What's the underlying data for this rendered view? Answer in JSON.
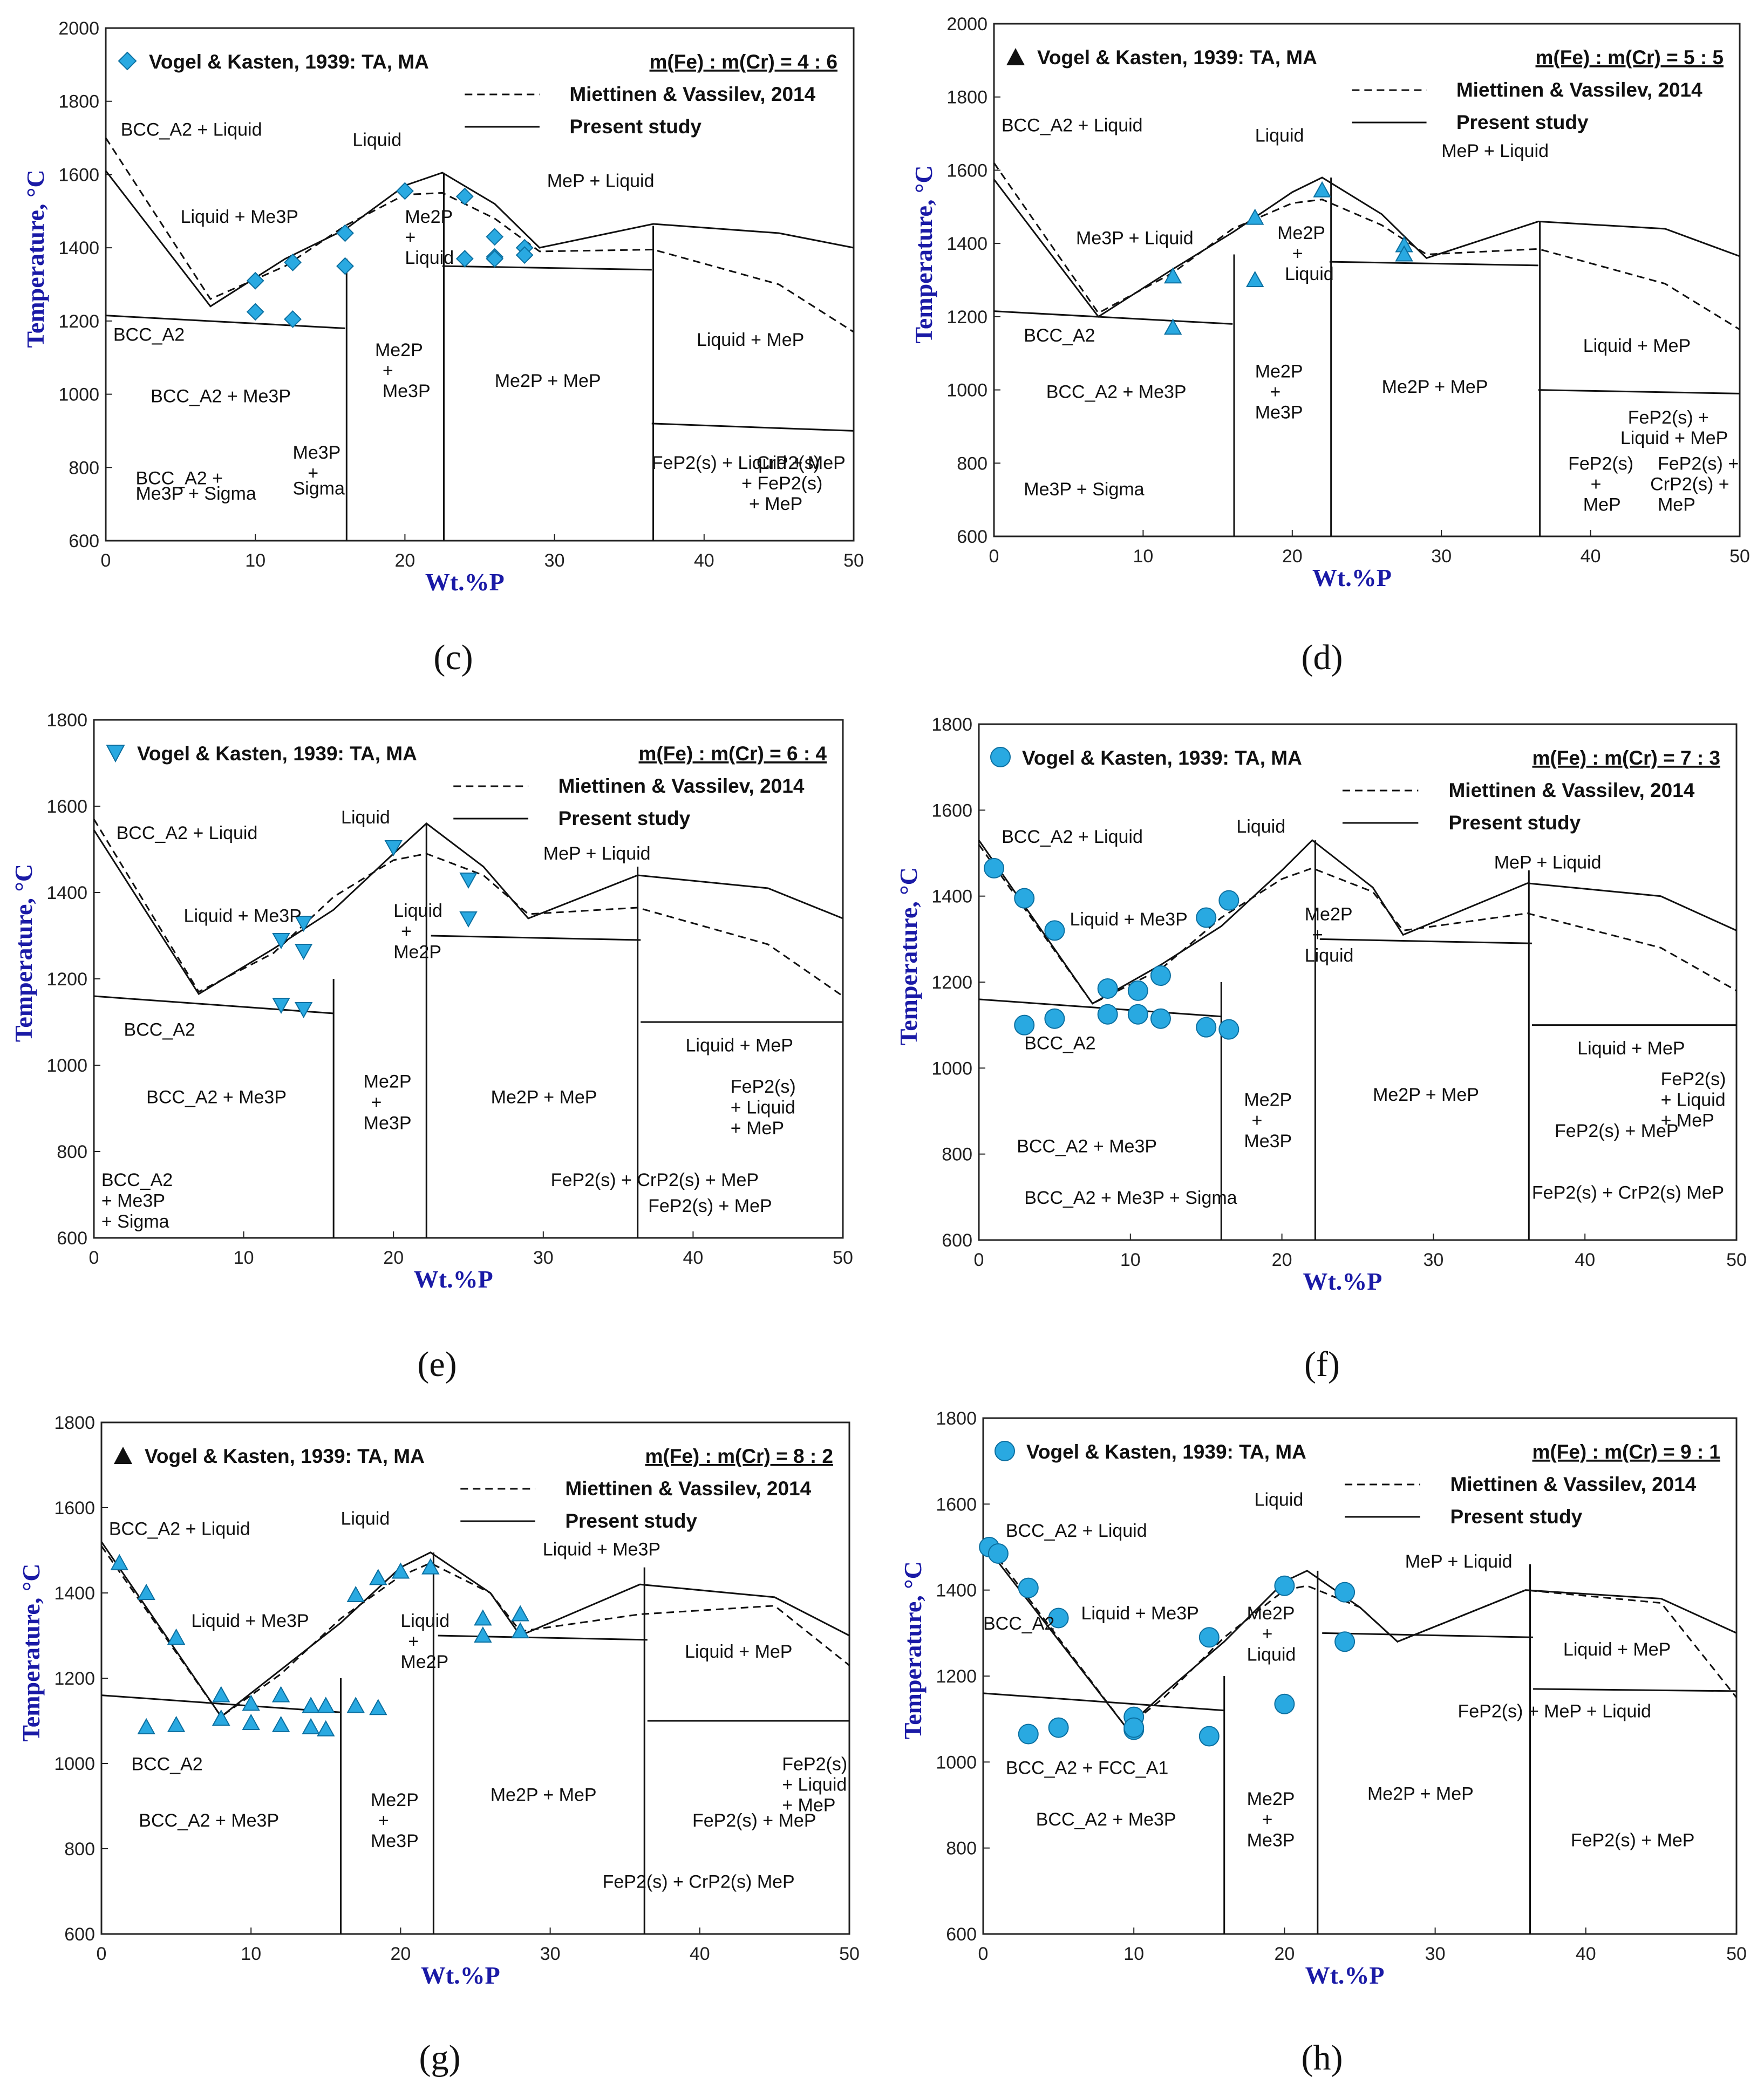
{
  "panels": [
    {
      "caption": "(c)",
      "ymax": 2000,
      "ratio": "m(Fe) : m(Cr) = 4 : 6",
      "exp_label": "Vogel & Kasten, 1939: TA, MA",
      "marker": "diamond",
      "dashed_label": "Miettinen & Vassilev, 2014",
      "solid_label": "Present study",
      "regions": [
        "Liquid",
        "BCC_A2 + Liquid",
        "Liquid + Me3P",
        "Me2P",
        "+",
        "Liquid",
        "MeP + Liquid",
        "BCC_A2",
        "BCC_A2 + Me3P",
        "Me2P",
        "+",
        "Me3P",
        "Me2P + MeP",
        "Liquid + MeP",
        "FeP2(s) + Liquid + MeP",
        "BCC_A2 +",
        "Me3P + Sigma",
        "Me3P",
        "+",
        "Sigma",
        "CrP2(s)",
        "+ FeP2(s)",
        "+ MeP"
      ]
    },
    {
      "caption": "(d)",
      "ymax": 2000,
      "ratio": "m(Fe) : m(Cr) = 5 : 5",
      "exp_label": "Vogel & Kasten, 1939: TA, MA",
      "marker": "triangle-black",
      "dashed_label": "Miettinen & Vassilev, 2014",
      "solid_label": "Present study",
      "regions": [
        "Liquid",
        "BCC_A2 + Liquid",
        "Me3P + Liquid",
        "Me2P",
        "+",
        "Liquid",
        "MeP + Liquid",
        "BCC_A2",
        "BCC_A2 + Me3P",
        "Me2P",
        "+",
        "Me3P",
        "Me2P + MeP",
        "Liquid + MeP",
        "FeP2(s) +",
        "Liquid + MeP",
        "FeP2(s)",
        "+",
        "MeP",
        "FeP2(s) +",
        "CrP2(s) +",
        "MeP",
        "Me3P + Sigma"
      ]
    },
    {
      "caption": "(e)",
      "ymax": 1800,
      "ratio": "m(Fe) : m(Cr) = 6 : 4",
      "exp_label": "Vogel & Kasten, 1939: TA, MA",
      "marker": "triangle-down",
      "dashed_label": "Miettinen & Vassilev, 2014",
      "solid_label": "Present study",
      "regions": [
        "Liquid",
        "BCC_A2 + Liquid",
        "Liquid + Me3P",
        "Liquid",
        "+",
        "Me2P",
        "MeP + Liquid",
        "BCC_A2",
        "BCC_A2 + Me3P",
        "Me2P",
        "+",
        "Me3P",
        "Me2P + MeP",
        "Liquid + MeP",
        "FeP2(s)",
        "+ Liquid",
        "+ MeP",
        "FeP2(s) + CrP2(s) + MeP",
        "FeP2(s) + MeP",
        "BCC_A2",
        "+ Me3P",
        "+ Sigma"
      ]
    },
    {
      "caption": "(f)",
      "ymax": 1800,
      "ratio": "m(Fe) : m(Cr) = 7 : 3",
      "exp_label": "Vogel & Kasten, 1939: TA, MA",
      "marker": "circle",
      "dashed_label": "Miettinen & Vassilev, 2014",
      "solid_label": "Present study",
      "regions": [
        "Liquid",
        "BCC_A2 + Liquid",
        "Liquid + Me3P",
        "Me2P",
        "+",
        "Liquid",
        "MeP + Liquid",
        "BCC_A2",
        "BCC_A2 + Me3P",
        "Me2P",
        "+",
        "Me3P",
        "Me2P + MeP",
        "Liquid + MeP",
        "FeP2(s)",
        "+ Liquid",
        "+ MeP",
        "FeP2(s) + MeP",
        "BCC_A2 + Me3P + Sigma",
        "FeP2(s) + CrP2(s) MeP"
      ]
    },
    {
      "caption": "(g)",
      "ymax": 1800,
      "ratio": "m(Fe) : m(Cr) = 8 : 2",
      "exp_label": "Vogel & Kasten, 1939: TA, MA",
      "marker": "triangle-black",
      "dashed_label": "Miettinen & Vassilev, 2014",
      "solid_label": "Present study",
      "regions": [
        "Liquid",
        "BCC_A2 + Liquid",
        "Liquid + Me3P",
        "Liquid",
        "+",
        "Me2P",
        "Liquid + Me3P",
        "BCC_A2",
        "BCC_A2 + Me3P",
        "Me2P",
        "+",
        "Me3P",
        "Me2P + MeP",
        "Liquid + MeP",
        "FeP2(s)",
        "+ Liquid",
        "+ MeP",
        "FeP2(s) + MeP",
        "FeP2(s) + CrP2(s) MeP"
      ]
    },
    {
      "caption": "(h)",
      "ymax": 1800,
      "ratio": "m(Fe) : m(Cr) = 9 : 1",
      "exp_label": "Vogel & Kasten, 1939: TA, MA",
      "marker": "circle",
      "dashed_label": "Miettinen & Vassilev, 2014",
      "solid_label": "Present study",
      "regions": [
        "Liquid",
        "BCC_A2 + Liquid",
        "BCC_A2",
        "Liquid + Me3P",
        "Me2P",
        "+",
        "Liquid",
        "MeP + Liquid",
        "BCC_A2 + FCC_A1",
        "BCC_A2 + Me3P",
        "Me2P",
        "+",
        "Me3P",
        "Me2P + MeP",
        "Liquid + MeP",
        "FeP2(s) + MeP + Liquid",
        "FeP2(s) + MeP"
      ]
    }
  ],
  "axis": {
    "xlabel": "Wt.%P",
    "ylabel": "Temperature, °C"
  },
  "chart_data": [
    {
      "type": "line",
      "title": "m(Fe) : m(Cr) = 4 : 6",
      "xlabel": "Wt.%P",
      "ylabel": "Temperature, °C",
      "xlim": [
        0,
        50
      ],
      "ylim": [
        600,
        2000
      ],
      "xticks": [
        0,
        10,
        20,
        30,
        40,
        50
      ],
      "yticks": [
        600,
        800,
        1000,
        1200,
        1400,
        1600,
        1800,
        2000
      ],
      "series": [
        {
          "name": "Vogel & Kasten, 1939: TA, MA",
          "marker": "diamond",
          "x": [
            10,
            10,
            12.5,
            12.5,
            16,
            16,
            20,
            24,
            26,
            26,
            24,
            26,
            28,
            28
          ],
          "y": [
            1310,
            1225,
            1360,
            1205,
            1440,
            1350,
            1555,
            1540,
            1430,
            1375,
            1370,
            1370,
            1400,
            1380
          ]
        },
        {
          "name": "Present study liquidus",
          "style": "solid",
          "x": [
            0,
            7,
            12,
            16,
            20,
            22.5,
            26,
            29,
            36.6,
            45,
            50
          ],
          "y": [
            1610,
            1240,
            1370,
            1450,
            1570,
            1605,
            1520,
            1400,
            1465,
            1440,
            1400
          ]
        },
        {
          "name": "Miettinen & Vassilev, 2014 liquidus",
          "style": "dashed",
          "x": [
            0,
            7,
            12,
            16,
            20,
            22.5,
            26,
            29,
            36.6,
            45,
            50
          ],
          "y": [
            1700,
            1260,
            1350,
            1460,
            1545,
            1550,
            1480,
            1390,
            1395,
            1300,
            1170
          ]
        }
      ]
    },
    {
      "type": "line",
      "title": "m(Fe) : m(Cr) = 5 : 5",
      "xlabel": "Wt.%P",
      "ylabel": "Temperature, °C",
      "xlim": [
        0,
        50
      ],
      "ylim": [
        600,
        2000
      ],
      "xticks": [
        0,
        10,
        20,
        30,
        40,
        50
      ],
      "yticks": [
        600,
        800,
        1000,
        1200,
        1400,
        1600,
        1800,
        2000
      ],
      "series": [
        {
          "name": "Vogel & Kasten, 1939: TA, MA",
          "marker": "triangle-black",
          "x": [
            12,
            12,
            17.5,
            17.5,
            22,
            27.5,
            27.5
          ],
          "y": [
            1310,
            1170,
            1470,
            1300,
            1545,
            1395,
            1370
          ]
        },
        {
          "name": "Present study liquidus",
          "style": "solid",
          "x": [
            0,
            7,
            12,
            16,
            20,
            22,
            26,
            29,
            36.5,
            45,
            50
          ],
          "y": [
            1575,
            1200,
            1330,
            1430,
            1540,
            1580,
            1480,
            1360,
            1460,
            1440,
            1365
          ]
        },
        {
          "name": "Miettinen & Vassilev, 2014 liquidus",
          "style": "dashed",
          "x": [
            0,
            7,
            12,
            16,
            20,
            22,
            26,
            29,
            36.5,
            45,
            50
          ],
          "y": [
            1620,
            1210,
            1320,
            1440,
            1510,
            1520,
            1450,
            1370,
            1385,
            1290,
            1165
          ]
        }
      ]
    },
    {
      "type": "line",
      "title": "m(Fe) : m(Cr) = 6 : 4",
      "xlabel": "Wt.%P",
      "ylabel": "Temperature, °C",
      "xlim": [
        0,
        50
      ],
      "ylim": [
        600,
        1800
      ],
      "xticks": [
        0,
        10,
        20,
        30,
        40,
        50
      ],
      "yticks": [
        600,
        800,
        1000,
        1200,
        1400,
        1600,
        1800
      ],
      "series": [
        {
          "name": "Vogel & Kasten, 1939: TA, MA",
          "marker": "triangle-down",
          "x": [
            12.5,
            14,
            14,
            12.5,
            14,
            20,
            25,
            25
          ],
          "y": [
            1290,
            1330,
            1265,
            1140,
            1130,
            1505,
            1430,
            1340
          ]
        },
        {
          "name": "Present study liquidus",
          "style": "solid",
          "x": [
            0,
            7,
            12,
            16,
            20,
            22.2,
            26,
            29,
            36.3,
            45,
            50
          ],
          "y": [
            1545,
            1165,
            1270,
            1360,
            1490,
            1560,
            1460,
            1340,
            1440,
            1410,
            1340
          ]
        },
        {
          "name": "Miettinen & Vassilev, 2014 liquidus",
          "style": "dashed",
          "x": [
            0,
            7,
            12,
            16,
            20,
            22.2,
            26,
            29,
            36.3,
            45,
            50
          ],
          "y": [
            1570,
            1170,
            1260,
            1390,
            1475,
            1490,
            1440,
            1350,
            1365,
            1280,
            1160
          ]
        }
      ]
    },
    {
      "type": "line",
      "title": "m(Fe) : m(Cr) = 7 : 3",
      "xlabel": "Wt.%P",
      "ylabel": "Temperature, °C",
      "xlim": [
        0,
        50
      ],
      "ylim": [
        600,
        1800
      ],
      "xticks": [
        0,
        10,
        20,
        30,
        40,
        50
      ],
      "yticks": [
        600,
        800,
        1000,
        1200,
        1400,
        1600,
        1800
      ],
      "series": [
        {
          "name": "Vogel & Kasten, 1939: TA, MA",
          "marker": "circle",
          "x": [
            1,
            3,
            5,
            8.5,
            10.5,
            12,
            15,
            16.5,
            3,
            5,
            8.5,
            10.5,
            12,
            15,
            16.5
          ],
          "y": [
            1465,
            1395,
            1320,
            1185,
            1180,
            1215,
            1350,
            1390,
            1100,
            1115,
            1125,
            1125,
            1115,
            1095,
            1090
          ]
        },
        {
          "name": "Present study liquidus",
          "style": "solid",
          "x": [
            0,
            7.5,
            12,
            16,
            20,
            22,
            26,
            28,
            36.2,
            45,
            50
          ],
          "y": [
            1530,
            1150,
            1240,
            1330,
            1460,
            1530,
            1420,
            1310,
            1430,
            1400,
            1320
          ]
        },
        {
          "name": "Miettinen & Vassilev, 2014 liquidus",
          "style": "dashed",
          "x": [
            0,
            7.5,
            12,
            16,
            20,
            22,
            26,
            28,
            36.2,
            45,
            50
          ],
          "y": [
            1520,
            1150,
            1230,
            1350,
            1440,
            1465,
            1410,
            1320,
            1360,
            1280,
            1180
          ]
        }
      ]
    },
    {
      "type": "line",
      "title": "m(Fe) : m(Cr) = 8 : 2",
      "xlabel": "Wt.%P",
      "ylabel": "Temperature, °C",
      "xlim": [
        0,
        50
      ],
      "ylim": [
        600,
        1800
      ],
      "xticks": [
        0,
        10,
        20,
        30,
        40,
        50
      ],
      "yticks": [
        600,
        800,
        1000,
        1200,
        1400,
        1600,
        1800
      ],
      "series": [
        {
          "name": "Vogel & Kasten, 1939: TA, MA",
          "marker": "triangle-black",
          "x": [
            1.2,
            3,
            5,
            8,
            8,
            10,
            12,
            14,
            15,
            17,
            18.5,
            20,
            22,
            25.5,
            28,
            3,
            5,
            8,
            10,
            12,
            14,
            15,
            17,
            18.5,
            25.5,
            28
          ],
          "y": [
            1470,
            1400,
            1295,
            1160,
            1105,
            1140,
            1160,
            1135,
            1135,
            1135,
            1130,
            1450,
            1460,
            1340,
            1350,
            1085,
            1090,
            1105,
            1095,
            1090,
            1085,
            1080,
            1395,
            1435,
            1300,
            1310
          ]
        },
        {
          "name": "Present study liquidus",
          "style": "solid",
          "x": [
            0,
            8,
            12,
            16,
            20,
            22,
            26,
            28,
            36,
            45,
            50
          ],
          "y": [
            1520,
            1110,
            1220,
            1330,
            1460,
            1495,
            1400,
            1300,
            1420,
            1390,
            1300
          ]
        },
        {
          "name": "Miettinen & Vassilev, 2014 liquidus",
          "style": "dashed",
          "x": [
            0,
            8,
            12,
            16,
            20,
            22,
            26,
            28,
            36,
            45,
            50
          ],
          "y": [
            1510,
            1110,
            1210,
            1340,
            1440,
            1470,
            1400,
            1310,
            1350,
            1370,
            1230
          ]
        }
      ]
    },
    {
      "type": "line",
      "title": "m(Fe) : m(Cr) = 9 : 1",
      "xlabel": "Wt.%P",
      "ylabel": "Temperature, °C",
      "xlim": [
        0,
        50
      ],
      "ylim": [
        600,
        1800
      ],
      "xticks": [
        0,
        10,
        20,
        30,
        40,
        50
      ],
      "yticks": [
        600,
        800,
        1000,
        1200,
        1400,
        1600,
        1800
      ],
      "series": [
        {
          "name": "Vogel & Kasten, 1939: TA, MA",
          "marker": "circle",
          "x": [
            0.4,
            1,
            3,
            5,
            10,
            15,
            20,
            24,
            3,
            5,
            10,
            15,
            20,
            24,
            10
          ],
          "y": [
            1500,
            1485,
            1405,
            1335,
            1105,
            1290,
            1410,
            1395,
            1065,
            1080,
            1075,
            1060,
            1135,
            1280,
            1080
          ]
        },
        {
          "name": "Present study liquidus",
          "style": "solid",
          "x": [
            0,
            9.5,
            12,
            16,
            20,
            21.5,
            25,
            27.5,
            36,
            45,
            50
          ],
          "y": [
            1510,
            1080,
            1160,
            1280,
            1420,
            1445,
            1360,
            1280,
            1400,
            1380,
            1300
          ]
        },
        {
          "name": "Miettinen & Vassilev, 2014 liquidus",
          "style": "dashed",
          "x": [
            0,
            9.5,
            12,
            16,
            20,
            21.5,
            25,
            27.5,
            36,
            45,
            50
          ],
          "y": [
            1520,
            1080,
            1150,
            1290,
            1400,
            1410,
            1360,
            1280,
            1400,
            1370,
            1150
          ]
        }
      ]
    }
  ]
}
